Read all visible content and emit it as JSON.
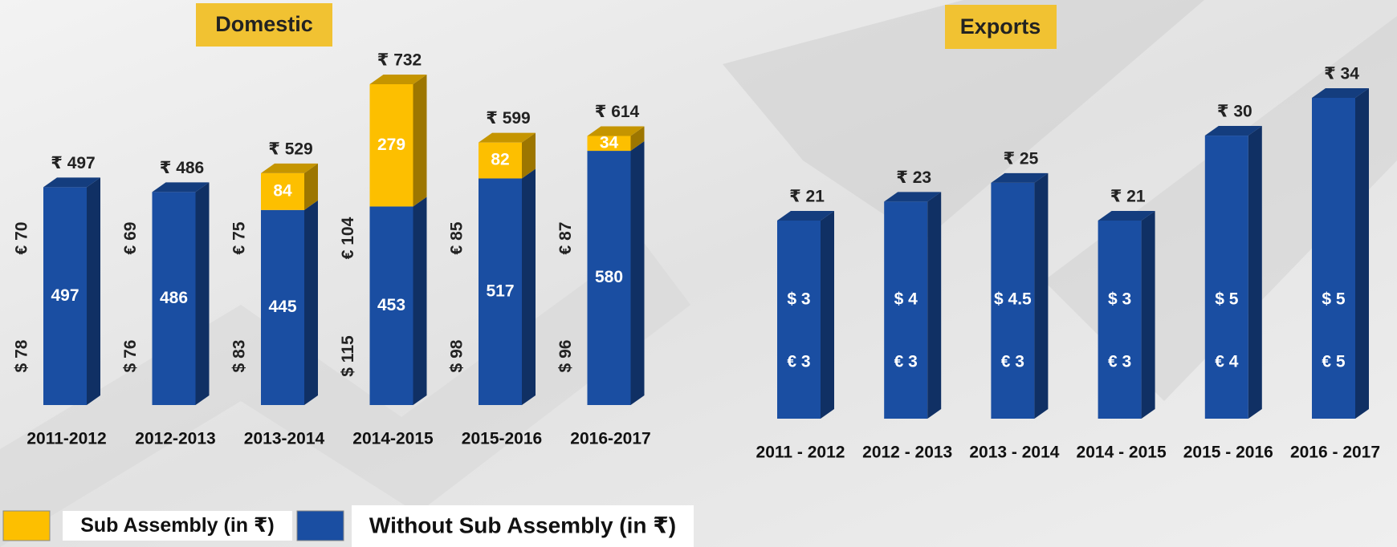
{
  "chart_data": [
    {
      "type": "bar",
      "stacked": true,
      "title": "Domestic",
      "categories": [
        "2011-2012",
        "2012-2013",
        "2013-2014",
        "2014-2015",
        "2015-2016",
        "2016-2017"
      ],
      "series": [
        {
          "name": "Without Sub Assembly (in ₹)",
          "color": "#1a4ea2",
          "values": [
            497,
            486,
            445,
            453,
            517,
            580
          ]
        },
        {
          "name": "Sub Assembly (in ₹)",
          "color": "#fdbf00",
          "values": [
            null,
            null,
            84,
            279,
            82,
            34
          ]
        }
      ],
      "totals": [
        497,
        486,
        529,
        732,
        599,
        614
      ],
      "total_labels": [
        "₹ 497",
        "₹ 486",
        "₹ 529",
        "₹ 732",
        "₹ 599",
        "₹ 614"
      ],
      "eur": [
        70,
        69,
        75,
        104,
        85,
        87
      ],
      "eur_labels": [
        "€ 70",
        "€ 69",
        "€ 75",
        "€ 104",
        "€ 85",
        "€ 87"
      ],
      "usd": [
        78,
        76,
        83,
        115,
        98,
        96
      ],
      "usd_labels": [
        "$ 78",
        "$ 76",
        "$ 83",
        "$ 115",
        "$ 98",
        "$ 96"
      ]
    },
    {
      "type": "bar",
      "title": "Exports",
      "categories": [
        "2011 - 2012",
        "2012 - 2013",
        "2013 - 2014",
        "2014 - 2015",
        "2015 - 2016",
        "2016 - 2017"
      ],
      "color": "#1a4ea2",
      "values": [
        21,
        23,
        25,
        21,
        30,
        34
      ],
      "value_labels": [
        "₹ 21",
        "₹ 23",
        "₹ 25",
        "₹ 21",
        "₹ 30",
        "₹ 34"
      ],
      "usd": [
        3,
        4,
        4.5,
        3,
        5,
        5
      ],
      "usd_labels": [
        "$ 3",
        "$ 4",
        "$ 4.5",
        "$ 3",
        "$ 5",
        "$ 5"
      ],
      "eur": [
        3,
        3,
        3,
        3,
        4,
        5
      ],
      "eur_labels": [
        "€ 3",
        "€ 3",
        "€ 3",
        "€ 3",
        "€ 4",
        "€ 5"
      ]
    }
  ]
}
